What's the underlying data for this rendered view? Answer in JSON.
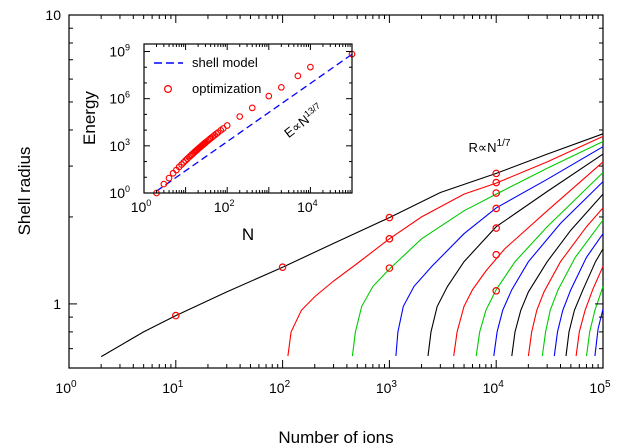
{
  "chart_data": [
    {
      "id": "main",
      "type": "line",
      "xlabel": "Number of ions",
      "ylabel": "Shell radius",
      "xscale": "log",
      "yscale": "log",
      "xlim": [
        1,
        100000
      ],
      "ylim": [
        0.6,
        10
      ],
      "x_ticks": [
        {
          "base": "10",
          "exp": "0",
          "value": 1
        },
        {
          "base": "10",
          "exp": "1",
          "value": 10
        },
        {
          "base": "10",
          "exp": "2",
          "value": 100
        },
        {
          "base": "10",
          "exp": "3",
          "value": 1000
        },
        {
          "base": "10",
          "exp": "4",
          "value": 10000
        },
        {
          "base": "10",
          "exp": "5",
          "value": 100000
        }
      ],
      "y_ticks": [
        {
          "label": "1",
          "value": 1
        },
        {
          "label": "10",
          "value": 10
        }
      ],
      "annotation": {
        "text": "R∝N",
        "exp": "1/7",
        "x": 5500,
        "y": 3.35
      },
      "series": [
        {
          "color": "#000000",
          "x": [
            2,
            5,
            10,
            30,
            100,
            300,
            1000,
            3000,
            10000,
            30000,
            100000
          ],
          "y": [
            0.657,
            0.8,
            0.911,
            1.1,
            1.34,
            1.62,
            1.99,
            2.43,
            2.83,
            3.3,
            3.88
          ]
        },
        {
          "color": "#ff0000",
          "x": [
            112,
            120,
            150,
            200,
            300,
            500,
            1000,
            2000,
            5000,
            10000,
            30000,
            100000
          ],
          "y": [
            0.66,
            0.8,
            0.95,
            1.06,
            1.2,
            1.38,
            1.68,
            2.0,
            2.4,
            2.62,
            3.1,
            3.8
          ]
        },
        {
          "color": "#00cc00",
          "x": [
            450,
            480,
            550,
            700,
            1000,
            2000,
            5000,
            10000,
            30000,
            100000
          ],
          "y": [
            0.66,
            0.8,
            0.98,
            1.15,
            1.32,
            1.68,
            2.1,
            2.4,
            2.95,
            3.65
          ]
        },
        {
          "color": "#0000ff",
          "x": [
            1150,
            1200,
            1350,
            1700,
            2500,
            5000,
            10000,
            30000,
            100000
          ],
          "y": [
            0.66,
            0.8,
            0.98,
            1.15,
            1.35,
            1.75,
            2.15,
            2.7,
            3.5
          ]
        },
        {
          "color": "#000000",
          "x": [
            2300,
            2450,
            2800,
            3500,
            5000,
            10000,
            30000,
            100000
          ],
          "y": [
            0.66,
            0.8,
            0.98,
            1.15,
            1.4,
            1.85,
            2.45,
            3.3
          ]
        },
        {
          "color": "#ff0000",
          "x": [
            4000,
            4300,
            5000,
            6000,
            8000,
            12000,
            30000,
            100000
          ],
          "y": [
            0.66,
            0.8,
            0.98,
            1.12,
            1.3,
            1.55,
            2.1,
            3.1
          ]
        },
        {
          "color": "#00cc00",
          "x": [
            6500,
            7000,
            8000,
            10000,
            15000,
            30000,
            100000
          ],
          "y": [
            0.66,
            0.8,
            0.95,
            1.12,
            1.4,
            1.85,
            2.85
          ]
        },
        {
          "color": "#0000ff",
          "x": [
            9500,
            10200,
            11500,
            14000,
            20000,
            40000,
            100000
          ],
          "y": [
            0.66,
            0.8,
            0.95,
            1.12,
            1.4,
            1.9,
            2.65
          ]
        },
        {
          "color": "#000000",
          "x": [
            14000,
            15000,
            17000,
            20000,
            30000,
            50000,
            100000
          ],
          "y": [
            0.66,
            0.8,
            0.95,
            1.1,
            1.4,
            1.8,
            2.4
          ]
        },
        {
          "color": "#ff0000",
          "x": [
            20000,
            21500,
            24000,
            28000,
            40000,
            70000,
            100000
          ],
          "y": [
            0.66,
            0.8,
            0.95,
            1.1,
            1.4,
            1.85,
            2.15
          ]
        },
        {
          "color": "#00cc00",
          "x": [
            27000,
            29000,
            32000,
            38000,
            55000,
            100000
          ],
          "y": [
            0.66,
            0.8,
            0.95,
            1.12,
            1.45,
            1.95
          ]
        },
        {
          "color": "#0000ff",
          "x": [
            35000,
            37500,
            42000,
            50000,
            70000,
            100000
          ],
          "y": [
            0.66,
            0.8,
            0.95,
            1.12,
            1.45,
            1.75
          ]
        },
        {
          "color": "#000000",
          "x": [
            45000,
            48000,
            54000,
            65000,
            85000,
            100000
          ],
          "y": [
            0.66,
            0.8,
            0.95,
            1.12,
            1.4,
            1.55
          ]
        },
        {
          "color": "#ff0000",
          "x": [
            56000,
            60000,
            68000,
            80000,
            100000
          ],
          "y": [
            0.66,
            0.8,
            0.95,
            1.12,
            1.35
          ]
        },
        {
          "color": "#00cc00",
          "x": [
            70000,
            75000,
            84000,
            100000
          ],
          "y": [
            0.66,
            0.8,
            0.95,
            1.15
          ]
        },
        {
          "color": "#0000ff",
          "x": [
            84000,
            90000,
            100000
          ],
          "y": [
            0.66,
            0.82,
            0.96
          ]
        }
      ],
      "markers": {
        "color": "#ff0000",
        "x": [
          10,
          100,
          1000,
          1000,
          1000,
          10000,
          10000,
          10000,
          10000,
          10000,
          10000,
          10000
        ],
        "y": [
          0.911,
          1.34,
          1.99,
          1.68,
          1.33,
          2.83,
          2.63,
          2.42,
          2.14,
          1.83,
          1.48,
          1.11
        ]
      }
    },
    {
      "id": "inset",
      "type": "line",
      "xlabel": "N",
      "ylabel": "Energy",
      "xscale": "log",
      "yscale": "log",
      "xlim": [
        1,
        100000
      ],
      "ylim": [
        1,
        3000000000
      ],
      "x_ticks": [
        {
          "base": "10",
          "exp": "0",
          "value": 1
        },
        {
          "base": "10",
          "exp": "2",
          "value": 100
        },
        {
          "base": "10",
          "exp": "4",
          "value": 10000
        }
      ],
      "y_ticks": [
        {
          "base": "10",
          "exp": "0",
          "value": 1
        },
        {
          "base": "10",
          "exp": "3",
          "value": 1000
        },
        {
          "base": "10",
          "exp": "6",
          "value": 1000000
        },
        {
          "base": "10",
          "exp": "9",
          "value": 1000000000
        }
      ],
      "legend": [
        {
          "label": "shell model",
          "style": "dashed",
          "color": "#0000ff"
        },
        {
          "label": "optimization",
          "style": "marker",
          "color": "#ff0000"
        }
      ],
      "legend_position": "top-left",
      "annotation": {
        "text": "E∝N",
        "exp": "13/7",
        "x": 3000,
        "y": 3000,
        "color": "#0000ff"
      },
      "fit": {
        "color": "#0000ff",
        "x": [
          2,
          100000
        ],
        "y": [
          1.32,
          666000000
        ]
      },
      "markers": {
        "color": "#ff0000",
        "x": [
          2,
          3,
          4,
          5,
          6,
          7,
          8,
          9,
          10,
          11,
          12,
          13,
          14,
          15,
          16,
          17,
          18,
          19,
          20,
          21,
          22,
          23,
          24,
          25,
          26,
          27,
          28,
          29,
          30,
          32,
          35,
          38,
          41,
          45,
          50,
          55,
          60,
          70,
          80,
          100,
          200,
          400,
          1000,
          2000,
          5000,
          10000,
          100000
        ],
        "y": [
          1,
          3.7,
          8.8,
          18,
          29,
          46,
          65,
          89,
          117,
          150,
          186,
          227,
          272,
          321,
          375,
          434,
          496,
          563,
          635,
          711,
          791,
          876,
          965,
          1059,
          1157,
          1260,
          1367,
          1478,
          1594,
          1838,
          2236,
          2670,
          3140,
          3830,
          4790,
          5840,
          6990,
          9600,
          12600,
          19700,
          73000,
          261000,
          1460000,
          5270000,
          28100000,
          102000000,
          680000000
        ]
      }
    }
  ]
}
